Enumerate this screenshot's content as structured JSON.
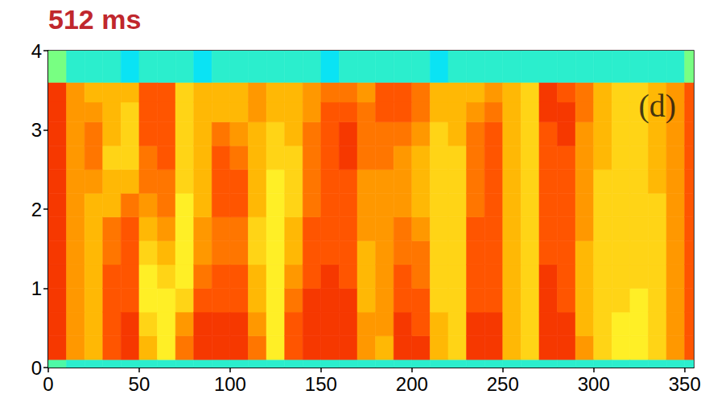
{
  "chart_data": {
    "type": "heatmap",
    "title": "512 ms",
    "annotations": [
      {
        "text": "(d)",
        "x": 335,
        "y": 3.3
      }
    ],
    "xlim": [
      0,
      355
    ],
    "xticks": [
      0,
      50,
      100,
      150,
      200,
      250,
      300,
      350
    ],
    "ylim": [
      0,
      4
    ],
    "yticks": [
      0,
      1,
      2,
      3,
      4
    ],
    "grid": false,
    "x_edges": [
      0,
      10,
      20,
      30,
      40,
      50,
      60,
      70,
      80,
      90,
      100,
      110,
      120,
      130,
      140,
      150,
      160,
      170,
      180,
      190,
      200,
      210,
      220,
      230,
      240,
      250,
      260,
      270,
      280,
      290,
      300,
      310,
      320,
      330,
      340,
      350,
      355
    ],
    "y_edges": [
      0,
      0.1,
      0.4,
      0.7,
      1.0,
      1.3,
      1.6,
      1.9,
      2.2,
      2.5,
      2.8,
      3.1,
      3.35,
      3.6,
      4
    ],
    "zlim": [
      0,
      10
    ],
    "cells": [
      [
        4,
        9,
        9,
        9,
        9,
        9,
        9,
        9,
        9,
        9,
        9,
        9,
        9,
        4.5
      ],
      [
        3.5,
        7.5,
        7.5,
        7.5,
        7.5,
        7.5,
        7.5,
        7.5,
        7.5,
        7.5,
        7.5,
        7.5,
        7.5,
        3.5
      ],
      [
        3.5,
        7,
        7,
        7,
        7,
        7,
        7,
        7,
        7.5,
        8,
        8,
        7.5,
        7,
        3.5
      ],
      [
        3.5,
        8.5,
        8.5,
        8.5,
        8.5,
        8,
        8,
        7,
        7,
        6.5,
        7,
        7,
        7,
        3.5
      ],
      [
        3.5,
        9,
        9,
        8.5,
        8.5,
        8.5,
        8.5,
        8,
        7,
        6.5,
        6.5,
        6.5,
        7,
        3
      ],
      [
        3.5,
        7,
        6.5,
        6,
        6,
        6.5,
        7,
        7.5,
        8,
        8,
        8.5,
        8.5,
        8.5,
        3.5
      ],
      [
        3.5,
        6,
        6,
        6,
        6.5,
        7,
        7.5,
        8,
        8,
        8.5,
        8.5,
        8.5,
        8.5,
        3.5
      ],
      [
        3.5,
        8,
        7.5,
        6.5,
        6,
        6,
        6,
        6,
        6.5,
        6.5,
        6.5,
        6.5,
        6.5,
        3.5
      ],
      [
        3.5,
        9,
        9,
        8.5,
        8,
        7.5,
        7.5,
        7,
        7,
        7,
        7,
        7,
        7,
        3
      ],
      [
        3.5,
        9,
        9,
        8.5,
        8.5,
        8,
        8,
        8.5,
        8.5,
        8.5,
        8,
        7,
        7,
        3.5
      ],
      [
        3.5,
        9,
        9,
        8.5,
        8.5,
        8,
        8,
        8.5,
        8.5,
        8,
        7.5,
        7,
        7,
        3.5
      ],
      [
        3.5,
        8,
        7.5,
        7,
        7,
        6.5,
        6.5,
        7,
        7,
        7,
        7,
        7.5,
        7.5,
        3.5
      ],
      [
        3.5,
        6,
        6,
        6,
        6,
        6,
        6,
        6,
        6,
        6.5,
        6.5,
        7,
        7,
        3.5
      ],
      [
        3.5,
        8.5,
        8.5,
        8,
        7.5,
        7,
        7,
        6.5,
        6.5,
        6.5,
        7,
        7,
        7,
        3.5
      ],
      [
        3.5,
        9,
        9,
        9,
        8.5,
        8.5,
        8.5,
        8,
        8,
        8,
        8,
        7.5,
        7.5,
        3.5
      ],
      [
        3.5,
        9,
        9,
        9,
        9,
        8.5,
        8.5,
        8.5,
        8.5,
        8.5,
        8.5,
        8.5,
        8,
        3
      ],
      [
        3.5,
        9,
        9,
        9,
        8.5,
        8.5,
        8.5,
        8.5,
        8.5,
        9,
        9,
        8.5,
        8,
        3.5
      ],
      [
        3.5,
        7.5,
        7.5,
        7,
        7,
        7,
        7.5,
        7.5,
        7.5,
        8,
        8,
        8,
        7.5,
        3.5
      ],
      [
        3.5,
        7,
        7.5,
        7.5,
        7.5,
        7.5,
        7.5,
        7.5,
        7.5,
        8,
        8,
        8.5,
        8.5,
        3.5
      ],
      [
        3.5,
        9,
        9,
        8.5,
        8.5,
        8,
        8,
        7.5,
        7.5,
        7.5,
        8,
        8.5,
        8.5,
        3.5
      ],
      [
        3.5,
        9,
        8.5,
        8.5,
        8,
        8,
        7.5,
        7,
        7,
        7,
        7.5,
        8,
        8,
        3.5
      ],
      [
        3.5,
        7,
        7,
        6.5,
        6.5,
        6.5,
        6.5,
        6.5,
        6.5,
        6.5,
        6.5,
        7,
        7,
        3
      ],
      [
        3.5,
        6.5,
        6.5,
        6.5,
        6.5,
        6.5,
        6.5,
        6.5,
        6.5,
        6.5,
        7,
        7,
        7,
        3.5
      ],
      [
        3.5,
        9,
        9,
        8.5,
        8.5,
        8.5,
        8.5,
        8,
        8,
        8,
        8,
        7.5,
        7,
        3.5
      ],
      [
        3.5,
        9,
        9,
        8.5,
        8.5,
        8.5,
        8.5,
        8.5,
        8.5,
        8.5,
        8.5,
        8,
        7.5,
        3.5
      ],
      [
        3.5,
        7,
        7,
        7,
        7,
        7,
        7,
        7,
        7,
        7,
        7,
        7,
        7,
        3.5
      ],
      [
        3.5,
        6.5,
        6.5,
        6.5,
        6.5,
        6.5,
        6.5,
        6.5,
        6.5,
        6.5,
        6.5,
        6.5,
        6.5,
        3.5
      ],
      [
        3.5,
        9,
        9,
        9,
        9,
        8.5,
        8.5,
        8.5,
        8.5,
        8.5,
        8.5,
        9,
        9,
        3.5
      ],
      [
        3.5,
        9,
        9,
        8.5,
        8.5,
        8.5,
        8.5,
        8.5,
        8.5,
        8.5,
        9,
        9,
        8.5,
        3.5
      ],
      [
        3.5,
        7.5,
        7,
        7,
        7,
        7,
        7.5,
        7.5,
        7.5,
        7.5,
        7.5,
        8,
        8,
        3.5
      ],
      [
        3.5,
        6.5,
        6.5,
        6.5,
        6.5,
        6.5,
        6.5,
        6.5,
        6.5,
        7,
        7,
        7,
        7,
        3.5
      ],
      [
        3.5,
        6,
        6,
        6.5,
        6.5,
        6.5,
        6.5,
        6.5,
        6.5,
        6.5,
        6.5,
        6.5,
        6.5,
        3.5
      ],
      [
        3.5,
        6,
        6,
        6,
        6.5,
        6.5,
        6.5,
        6.5,
        6.5,
        6.5,
        6.5,
        6.5,
        6.5,
        3.5
      ],
      [
        3.5,
        6.5,
        6.5,
        6.5,
        6.5,
        6.5,
        6.5,
        6.5,
        7,
        7,
        7,
        7,
        7,
        3.5
      ],
      [
        3.5,
        7.5,
        7.5,
        7.5,
        7.5,
        7.5,
        7.5,
        7.5,
        7.5,
        7.5,
        7.5,
        7.5,
        7.5,
        3.5
      ],
      [
        3.5,
        8.5,
        8.5,
        8.5,
        8.5,
        8.5,
        8.5,
        8.5,
        8.5,
        8.5,
        8.5,
        8.5,
        8.5,
        4.5
      ]
    ]
  }
}
